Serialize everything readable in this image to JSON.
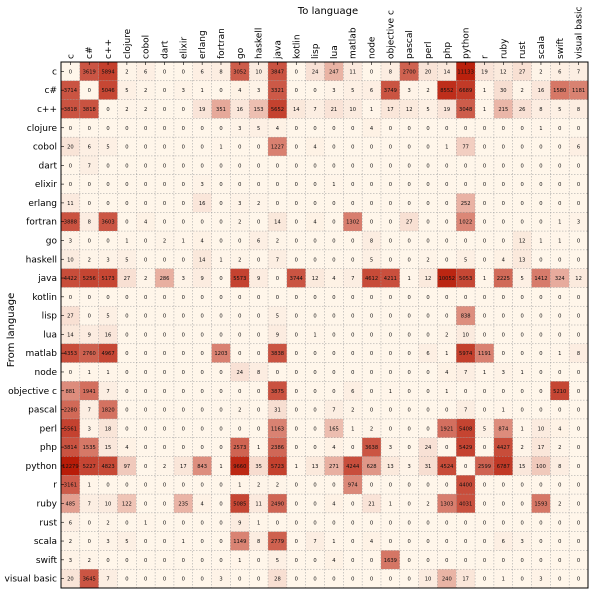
{
  "chart_data": {
    "type": "heatmap",
    "xlabel": "To language",
    "ylabel": "From language",
    "grid": true,
    "color_scale": [
      "#fff6ea",
      "#b81c08"
    ],
    "columns": [
      "c",
      "c#",
      "c++",
      "clojure",
      "cobol",
      "dart",
      "elixir",
      "erlang",
      "fortran",
      "go",
      "haskell",
      "java",
      "kotlin",
      "lisp",
      "lua",
      "matlab",
      "node",
      "objective c",
      "pascal",
      "perl",
      "php",
      "python",
      "r",
      "ruby",
      "rust",
      "scala",
      "swift",
      "visual basic"
    ],
    "rows": [
      "c",
      "c#",
      "c++",
      "clojure",
      "cobol",
      "dart",
      "elixir",
      "erlang",
      "fortran",
      "go",
      "haskell",
      "java",
      "kotlin",
      "lisp",
      "lua",
      "matlab",
      "node",
      "objective c",
      "pascal",
      "perl",
      "php",
      "python",
      "r",
      "ruby",
      "rust",
      "scala",
      "swift",
      "visual basic"
    ],
    "values": [
      [
        0,
        3619,
        5894,
        2,
        6,
        0,
        0,
        6,
        8,
        3052,
        10,
        3847,
        0,
        24,
        247,
        11,
        0,
        8,
        2700,
        20,
        14,
        11133,
        19,
        12,
        27,
        2,
        6,
        7
      ],
      [
        3714,
        0,
        5046,
        5,
        2,
        0,
        3,
        1,
        0,
        4,
        3,
        3321,
        0,
        0,
        3,
        5,
        6,
        3749,
        3,
        2,
        8552,
        6689,
        1,
        30,
        2,
        16,
        1580,
        1181
      ],
      [
        3818,
        3818,
        0,
        2,
        2,
        0,
        0,
        19,
        351,
        16,
        153,
        5652,
        14,
        7,
        21,
        10,
        1,
        17,
        12,
        5,
        19,
        3048,
        1,
        215,
        26,
        8,
        5,
        8
      ],
      [
        0,
        0,
        0,
        0,
        0,
        0,
        0,
        0,
        0,
        3,
        5,
        4,
        0,
        0,
        0,
        0,
        4,
        0,
        0,
        0,
        0,
        0,
        0,
        0,
        0,
        1,
        0,
        0
      ],
      [
        20,
        6,
        5,
        0,
        0,
        0,
        0,
        0,
        1,
        0,
        0,
        1227,
        0,
        4,
        0,
        0,
        0,
        0,
        0,
        0,
        1,
        77,
        0,
        0,
        0,
        0,
        0,
        6
      ],
      [
        0,
        7,
        0,
        0,
        0,
        0,
        0,
        0,
        0,
        0,
        0,
        0,
        0,
        0,
        0,
        0,
        0,
        0,
        0,
        0,
        0,
        0,
        0,
        0,
        0,
        0,
        0,
        0
      ],
      [
        0,
        0,
        0,
        0,
        0,
        0,
        0,
        3,
        0,
        0,
        0,
        0,
        0,
        0,
        1,
        0,
        0,
        0,
        0,
        0,
        0,
        0,
        0,
        0,
        0,
        0,
        0,
        0
      ],
      [
        11,
        0,
        0,
        0,
        0,
        0,
        0,
        16,
        0,
        3,
        2,
        0,
        0,
        0,
        0,
        0,
        0,
        0,
        0,
        0,
        0,
        252,
        0,
        0,
        0,
        0,
        0,
        0
      ],
      [
        3888,
        8,
        3603,
        0,
        4,
        0,
        0,
        0,
        0,
        2,
        0,
        14,
        0,
        4,
        0,
        1302,
        0,
        0,
        27,
        0,
        0,
        1022,
        0,
        0,
        0,
        0,
        1,
        3
      ],
      [
        3,
        0,
        0,
        1,
        0,
        2,
        1,
        4,
        0,
        0,
        6,
        2,
        0,
        0,
        0,
        0,
        8,
        0,
        0,
        0,
        0,
        0,
        0,
        0,
        12,
        1,
        1,
        0
      ],
      [
        10,
        2,
        3,
        5,
        0,
        0,
        0,
        14,
        1,
        2,
        0,
        7,
        0,
        0,
        0,
        0,
        5,
        0,
        0,
        2,
        0,
        5,
        0,
        4,
        13,
        0,
        0,
        0
      ],
      [
        4422,
        5256,
        5173,
        27,
        2,
        286,
        3,
        9,
        0,
        5573,
        9,
        0,
        3744,
        12,
        4,
        7,
        4612,
        4211,
        1,
        12,
        10052,
        5053,
        1,
        2225,
        5,
        1412,
        324,
        12
      ],
      [
        0,
        0,
        0,
        0,
        0,
        0,
        0,
        0,
        0,
        0,
        0,
        0,
        0,
        0,
        0,
        0,
        0,
        0,
        0,
        0,
        0,
        0,
        0,
        0,
        0,
        0,
        0,
        0
      ],
      [
        27,
        0,
        5,
        0,
        0,
        0,
        0,
        0,
        0,
        0,
        0,
        5,
        0,
        0,
        0,
        0,
        0,
        0,
        0,
        0,
        0,
        838,
        0,
        0,
        0,
        0,
        0,
        0
      ],
      [
        14,
        9,
        16,
        0,
        0,
        0,
        0,
        0,
        0,
        0,
        0,
        9,
        0,
        1,
        0,
        0,
        0,
        0,
        0,
        0,
        2,
        10,
        0,
        0,
        0,
        0,
        0,
        0
      ],
      [
        4353,
        2760,
        4967,
        0,
        0,
        0,
        0,
        0,
        1203,
        0,
        0,
        3838,
        0,
        0,
        0,
        0,
        0,
        0,
        0,
        6,
        1,
        5974,
        1191,
        0,
        0,
        0,
        1,
        8
      ],
      [
        0,
        1,
        1,
        0,
        0,
        0,
        0,
        0,
        0,
        24,
        8,
        0,
        0,
        0,
        0,
        0,
        0,
        0,
        0,
        0,
        4,
        7,
        1,
        3,
        1,
        0,
        0,
        0
      ],
      [
        881,
        1941,
        7,
        0,
        0,
        0,
        0,
        0,
        0,
        0,
        0,
        3875,
        0,
        0,
        0,
        6,
        0,
        1,
        0,
        0,
        1,
        0,
        0,
        0,
        0,
        0,
        5210,
        0
      ],
      [
        2280,
        7,
        1820,
        0,
        0,
        0,
        0,
        0,
        0,
        2,
        0,
        31,
        0,
        0,
        7,
        2,
        0,
        0,
        0,
        0,
        0,
        7,
        0,
        1,
        0,
        0,
        0,
        0
      ],
      [
        5561,
        3,
        18,
        0,
        0,
        0,
        0,
        0,
        0,
        0,
        0,
        1163,
        0,
        0,
        165,
        1,
        2,
        0,
        0,
        0,
        1921,
        5408,
        5,
        874,
        1,
        10,
        4,
        0
      ],
      [
        3814,
        1535,
        15,
        4,
        0,
        0,
        0,
        0,
        0,
        2573,
        1,
        2386,
        0,
        0,
        4,
        0,
        3638,
        3,
        0,
        24,
        0,
        5429,
        0,
        4427,
        2,
        17,
        2,
        0
      ],
      [
        12279,
        5227,
        4823,
        97,
        0,
        2,
        17,
        843,
        1,
        9660,
        35,
        5723,
        1,
        13,
        271,
        4244,
        628,
        13,
        3,
        31,
        4524,
        0,
        2599,
        6787,
        15,
        100,
        8,
        0
      ],
      [
        3161,
        1,
        0,
        0,
        0,
        0,
        0,
        0,
        0,
        1,
        2,
        2,
        0,
        0,
        0,
        974,
        0,
        0,
        0,
        0,
        0,
        4400,
        0,
        0,
        0,
        0,
        0,
        0
      ],
      [
        485,
        7,
        10,
        122,
        0,
        0,
        235,
        4,
        0,
        5085,
        11,
        2490,
        0,
        0,
        4,
        0,
        21,
        1,
        0,
        2,
        1303,
        4031,
        0,
        0,
        0,
        1593,
        2,
        0
      ],
      [
        6,
        0,
        2,
        0,
        1,
        0,
        0,
        0,
        0,
        9,
        1,
        0,
        0,
        0,
        0,
        0,
        0,
        0,
        0,
        0,
        0,
        0,
        0,
        0,
        0,
        0,
        0,
        0
      ],
      [
        2,
        0,
        3,
        5,
        0,
        0,
        1,
        0,
        0,
        1149,
        8,
        2779,
        0,
        7,
        1,
        0,
        4,
        0,
        0,
        0,
        0,
        0,
        0,
        6,
        3,
        0,
        0,
        0
      ],
      [
        3,
        2,
        0,
        0,
        0,
        0,
        0,
        0,
        0,
        1,
        0,
        5,
        0,
        0,
        4,
        0,
        0,
        1639,
        0,
        0,
        0,
        0,
        0,
        0,
        0,
        0,
        0,
        0
      ],
      [
        20,
        3645,
        7,
        0,
        0,
        0,
        0,
        0,
        3,
        0,
        0,
        28,
        0,
        0,
        0,
        0,
        0,
        0,
        0,
        10,
        240,
        17,
        0,
        1,
        0,
        3,
        0,
        0
      ]
    ]
  }
}
